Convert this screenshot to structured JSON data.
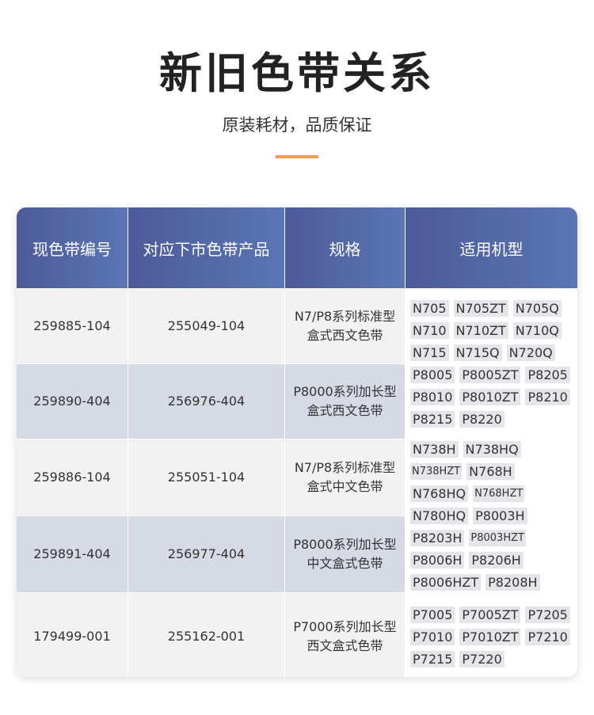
{
  "header": {
    "title": "新旧色带关系",
    "subtitle": "原装耗材，品质保证"
  },
  "table": {
    "columns": [
      "现色带编号",
      "对应下市色带产品",
      "规格",
      "适用机型"
    ],
    "rows": [
      [
        "259885-104",
        "255049-104",
        [
          "N7/P8系列标准型",
          "盒式西文色带"
        ]
      ],
      [
        "259890-404",
        "256976-404",
        [
          "P8000系列加长型",
          "盒式西文色带"
        ]
      ],
      [
        "259886-104",
        "255051-104",
        [
          "N7/P8系列标准型",
          "盒式中文色带"
        ]
      ],
      [
        "259891-404",
        "256977-404",
        [
          "P8000系列加长型",
          "中文盒式色带"
        ]
      ],
      [
        "179499-001",
        "255162-001",
        [
          "P7000系列加长型",
          "西文盒式色带"
        ]
      ]
    ],
    "model_groups": [
      [
        "N705",
        "N705ZT",
        "N705Q",
        "N710",
        "N710ZT",
        "N710Q",
        "N715",
        "N715Q",
        "N720Q",
        "P8005",
        "P8005ZT",
        "P8205",
        "P8010",
        "P8010ZT",
        "P8210",
        "P8215",
        "P8220"
      ],
      [
        "N738H",
        "N738HQ",
        "N738HZT",
        "N768H",
        "N768HQ",
        "N768HZT",
        "N780HQ",
        "P8003H",
        "P8203H",
        "P8003HZT",
        "P8006H",
        "P8206H",
        "P8006HZT",
        "P8208H"
      ],
      [
        "P7005",
        "P7005ZT",
        "P7205",
        "P7010",
        "P7010ZT",
        "P7210",
        "P7215",
        "P7220"
      ]
    ]
  }
}
